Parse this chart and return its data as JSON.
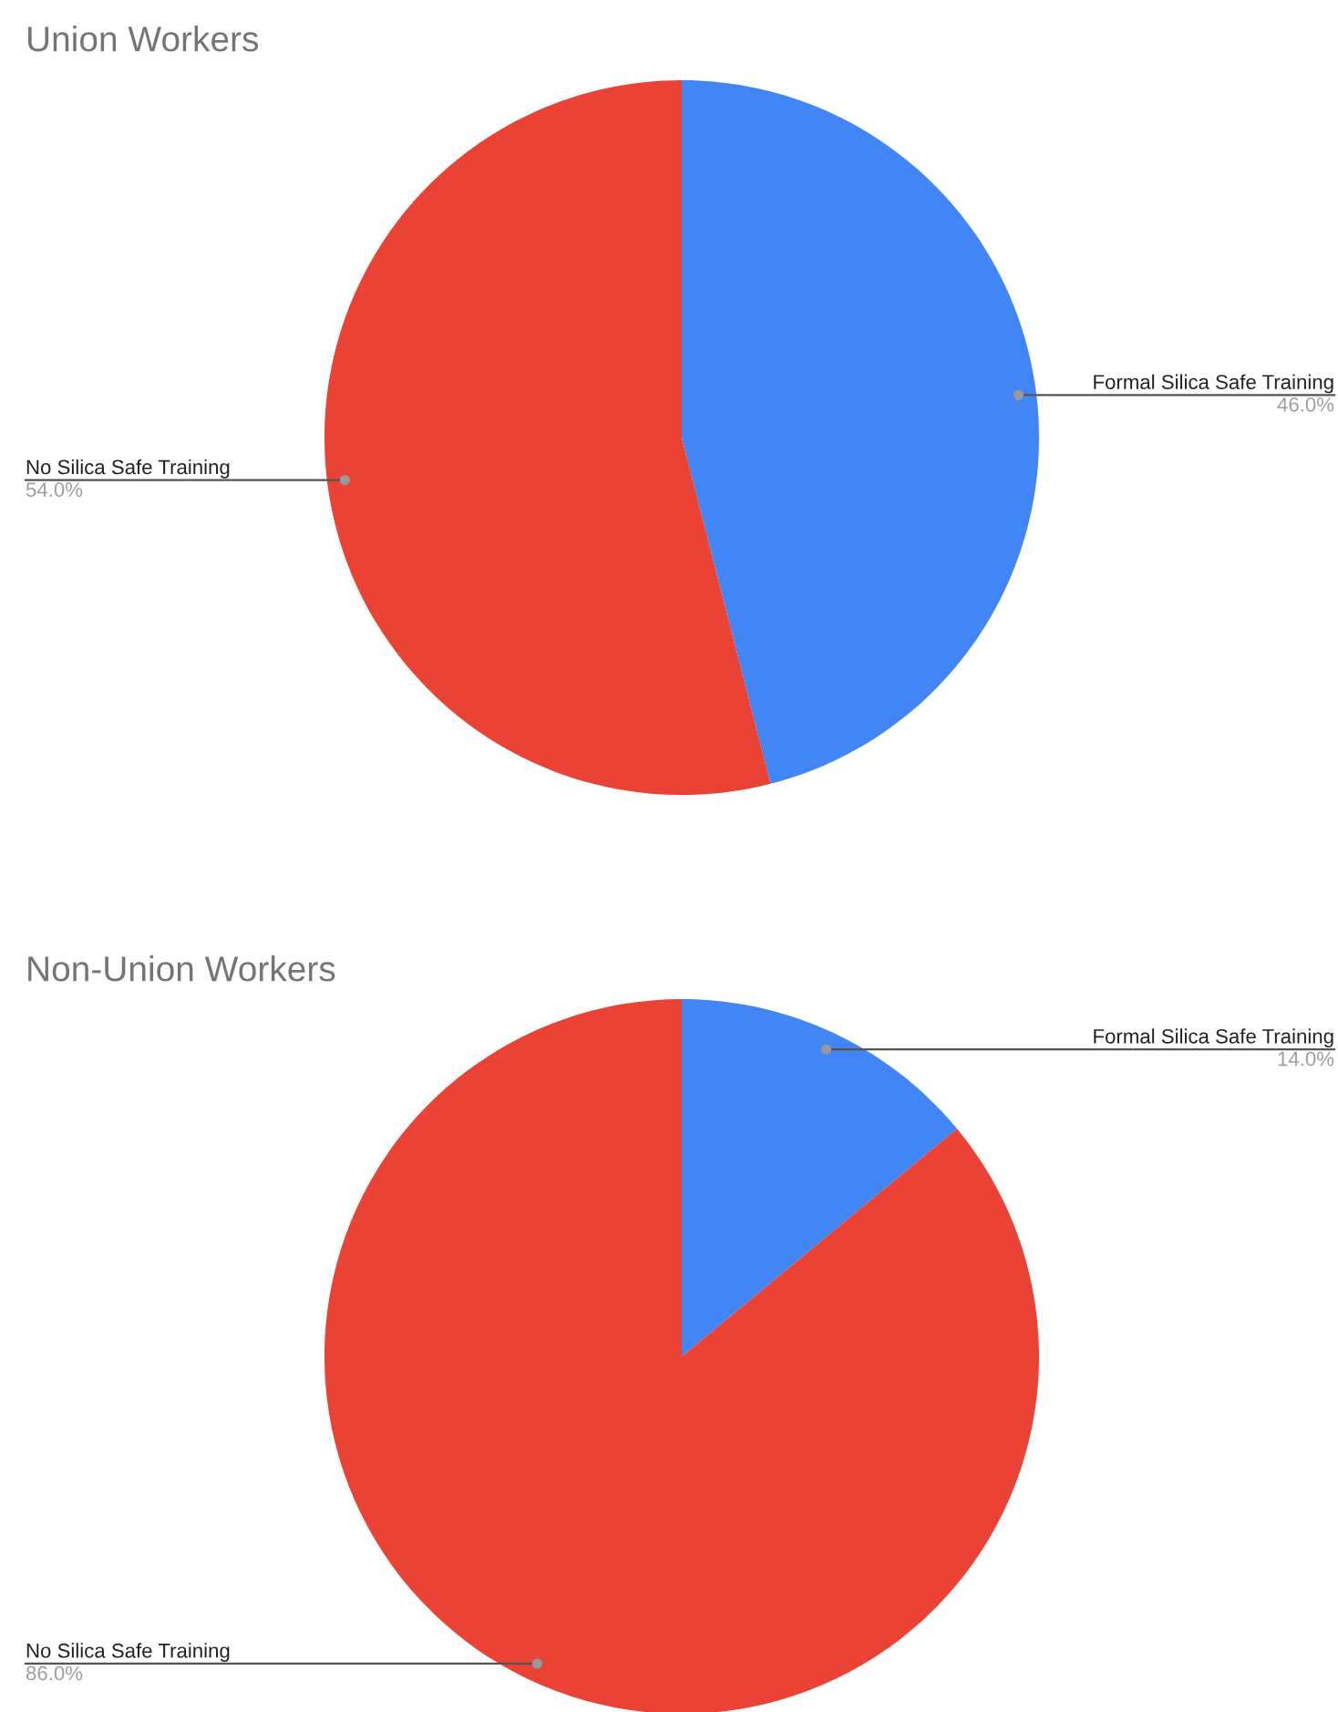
{
  "chart_data": [
    {
      "type": "pie",
      "title": "Union Workers",
      "categories": [
        "Formal Silica Safe Training",
        "No Silica Safe Training"
      ],
      "values": [
        46,
        54
      ],
      "colors": [
        "#4285f4",
        "#ea4335"
      ],
      "value_labels": [
        "46.0%",
        "54.0%"
      ]
    },
    {
      "type": "pie",
      "title": "Non-Union Workers",
      "categories": [
        "Formal Silica Safe Training",
        "No Silica Safe Training"
      ],
      "values": [
        14,
        86
      ],
      "colors": [
        "#4285f4",
        "#ea4335"
      ],
      "value_labels": [
        "14.0%",
        "86.0%"
      ]
    }
  ]
}
